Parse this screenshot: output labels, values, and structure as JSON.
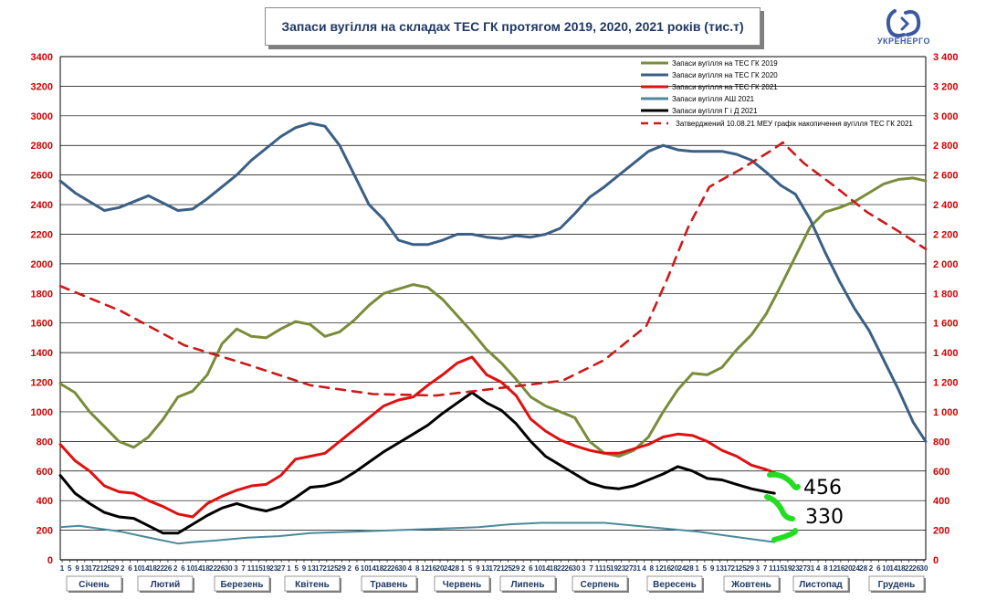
{
  "title": "Запаси вугілля на складах ТЕС ГК протягом 2019, 2020, 2021 років (тис.т)",
  "logo_text": "УКРЕНЕРГО",
  "chart_data": {
    "type": "line",
    "ylim": [
      0,
      3400
    ],
    "y_ticks_left": [
      "0",
      "200",
      "400",
      "600",
      "800",
      "1000",
      "1200",
      "1400",
      "1600",
      "1800",
      "2000",
      "2200",
      "2400",
      "2600",
      "2800",
      "3000",
      "3200",
      "3400"
    ],
    "y_ticks_right": [
      "0",
      "200",
      "400",
      "600",
      "800",
      "1 000",
      "1 200",
      "1 400",
      "1 600",
      "1 800",
      "2 000",
      "2 200",
      "2 400",
      "2 600",
      "2 800",
      "3 000",
      "3 200",
      "3 400"
    ],
    "grid": true,
    "legend_position": "top-right",
    "x_day_labels": [
      "1",
      "5",
      "9",
      "13",
      "17",
      "21",
      "25",
      "29",
      "2",
      "6",
      "10",
      "14",
      "18",
      "22",
      "26",
      "2",
      "6",
      "10",
      "14",
      "18",
      "22",
      "26",
      "30",
      "3",
      "7",
      "11",
      "15",
      "19",
      "23",
      "27",
      "1",
      "5",
      "9",
      "13",
      "17",
      "21",
      "25",
      "29",
      "2",
      "6",
      "10",
      "14",
      "18",
      "22",
      "26",
      "30",
      "4",
      "8",
      "12",
      "16",
      "20",
      "24",
      "28",
      "1",
      "5",
      "9",
      "13",
      "17",
      "21",
      "25",
      "29",
      "2",
      "6",
      "10",
      "14",
      "18",
      "22",
      "26",
      "30",
      "3",
      "7",
      "11",
      "15",
      "19",
      "23",
      "27",
      "31",
      "4",
      "8",
      "12",
      "16",
      "20",
      "24",
      "28",
      "1",
      "5",
      "9",
      "13",
      "17",
      "21",
      "25",
      "29",
      "3",
      "7",
      "11",
      "15",
      "19",
      "23",
      "27",
      "31",
      "4",
      "8",
      "12",
      "16",
      "20",
      "24",
      "28",
      "2",
      "6",
      "10",
      "14",
      "18",
      "22",
      "26",
      "30"
    ],
    "months": [
      "Січень",
      "Лютий",
      "Березень",
      "Квітень",
      "Травень",
      "Червень",
      "Липень",
      "Серпень",
      "Вересень",
      "Жовтень",
      "Листопад",
      "Грудень"
    ],
    "series": [
      {
        "name": "Запаси вугілля на ТЕС ГК 2019",
        "color": "#7a8c3a",
        "style": "solid",
        "points": [
          [
            1,
            1190
          ],
          [
            8,
            1130
          ],
          [
            15,
            1000
          ],
          [
            22,
            900
          ],
          [
            29,
            800
          ],
          [
            36,
            760
          ],
          [
            43,
            830
          ],
          [
            50,
            950
          ],
          [
            57,
            1100
          ],
          [
            64,
            1140
          ],
          [
            71,
            1250
          ],
          [
            78,
            1460
          ],
          [
            85,
            1560
          ],
          [
            92,
            1510
          ],
          [
            99,
            1500
          ],
          [
            106,
            1560
          ],
          [
            113,
            1610
          ],
          [
            120,
            1590
          ],
          [
            127,
            1510
          ],
          [
            134,
            1540
          ],
          [
            141,
            1620
          ],
          [
            148,
            1720
          ],
          [
            155,
            1800
          ],
          [
            162,
            1830
          ],
          [
            169,
            1860
          ],
          [
            176,
            1840
          ],
          [
            183,
            1760
          ],
          [
            190,
            1650
          ],
          [
            197,
            1540
          ],
          [
            204,
            1420
          ],
          [
            211,
            1330
          ],
          [
            218,
            1220
          ],
          [
            225,
            1100
          ],
          [
            232,
            1040
          ],
          [
            239,
            1000
          ],
          [
            246,
            960
          ],
          [
            253,
            800
          ],
          [
            260,
            720
          ],
          [
            267,
            700
          ],
          [
            274,
            740
          ],
          [
            281,
            830
          ],
          [
            288,
            1000
          ],
          [
            295,
            1150
          ],
          [
            302,
            1260
          ],
          [
            309,
            1250
          ],
          [
            316,
            1300
          ],
          [
            323,
            1420
          ],
          [
            330,
            1520
          ],
          [
            337,
            1660
          ],
          [
            344,
            1850
          ],
          [
            351,
            2050
          ],
          [
            358,
            2250
          ],
          [
            365,
            2350
          ],
          [
            372,
            2380
          ],
          [
            379,
            2420
          ],
          [
            386,
            2480
          ],
          [
            393,
            2540
          ],
          [
            400,
            2570
          ],
          [
            407,
            2580
          ],
          [
            413,
            2560
          ]
        ]
      },
      {
        "name": "Запаси вугілля на ТЕС ГК 2020",
        "color": "#3b5f86",
        "style": "solid",
        "points": [
          [
            1,
            2560
          ],
          [
            8,
            2480
          ],
          [
            15,
            2420
          ],
          [
            22,
            2360
          ],
          [
            29,
            2380
          ],
          [
            36,
            2420
          ],
          [
            43,
            2460
          ],
          [
            50,
            2410
          ],
          [
            57,
            2360
          ],
          [
            64,
            2370
          ],
          [
            71,
            2440
          ],
          [
            78,
            2520
          ],
          [
            85,
            2600
          ],
          [
            92,
            2700
          ],
          [
            99,
            2780
          ],
          [
            106,
            2860
          ],
          [
            113,
            2920
          ],
          [
            120,
            2950
          ],
          [
            127,
            2930
          ],
          [
            134,
            2800
          ],
          [
            141,
            2600
          ],
          [
            148,
            2400
          ],
          [
            155,
            2300
          ],
          [
            162,
            2160
          ],
          [
            169,
            2130
          ],
          [
            176,
            2130
          ],
          [
            183,
            2160
          ],
          [
            190,
            2200
          ],
          [
            197,
            2200
          ],
          [
            204,
            2180
          ],
          [
            211,
            2170
          ],
          [
            218,
            2190
          ],
          [
            225,
            2180
          ],
          [
            232,
            2200
          ],
          [
            239,
            2240
          ],
          [
            246,
            2340
          ],
          [
            253,
            2450
          ],
          [
            260,
            2520
          ],
          [
            267,
            2600
          ],
          [
            274,
            2680
          ],
          [
            281,
            2760
          ],
          [
            288,
            2800
          ],
          [
            295,
            2770
          ],
          [
            302,
            2760
          ],
          [
            309,
            2760
          ],
          [
            316,
            2760
          ],
          [
            323,
            2740
          ],
          [
            330,
            2700
          ],
          [
            337,
            2620
          ],
          [
            344,
            2530
          ],
          [
            351,
            2470
          ],
          [
            358,
            2300
          ],
          [
            365,
            2080
          ],
          [
            372,
            1880
          ],
          [
            379,
            1700
          ],
          [
            386,
            1550
          ],
          [
            393,
            1350
          ],
          [
            400,
            1150
          ],
          [
            407,
            930
          ],
          [
            413,
            800
          ]
        ]
      },
      {
        "name": "Запаси вугілля на ТЕС ГК 2021",
        "color": "#e01010",
        "style": "solid",
        "points": [
          [
            1,
            780
          ],
          [
            8,
            670
          ],
          [
            15,
            600
          ],
          [
            22,
            500
          ],
          [
            29,
            460
          ],
          [
            36,
            450
          ],
          [
            43,
            400
          ],
          [
            50,
            360
          ],
          [
            57,
            310
          ],
          [
            64,
            290
          ],
          [
            71,
            380
          ],
          [
            78,
            430
          ],
          [
            85,
            470
          ],
          [
            92,
            500
          ],
          [
            99,
            510
          ],
          [
            106,
            570
          ],
          [
            113,
            680
          ],
          [
            120,
            700
          ],
          [
            127,
            720
          ],
          [
            134,
            800
          ],
          [
            141,
            880
          ],
          [
            148,
            960
          ],
          [
            155,
            1040
          ],
          [
            162,
            1080
          ],
          [
            169,
            1100
          ],
          [
            176,
            1180
          ],
          [
            183,
            1250
          ],
          [
            190,
            1330
          ],
          [
            197,
            1370
          ],
          [
            204,
            1250
          ],
          [
            211,
            1200
          ],
          [
            218,
            1110
          ],
          [
            225,
            950
          ],
          [
            232,
            870
          ],
          [
            239,
            810
          ],
          [
            246,
            770
          ],
          [
            253,
            740
          ],
          [
            260,
            720
          ],
          [
            267,
            720
          ],
          [
            274,
            750
          ],
          [
            281,
            780
          ],
          [
            288,
            830
          ],
          [
            295,
            850
          ],
          [
            302,
            840
          ],
          [
            309,
            800
          ],
          [
            316,
            740
          ],
          [
            323,
            700
          ],
          [
            330,
            640
          ],
          [
            337,
            610
          ],
          [
            341,
            590
          ]
        ]
      },
      {
        "name": "Запаси вугілля АШ 2021",
        "color": "#4a8a9c",
        "style": "solid",
        "points": [
          [
            1,
            220
          ],
          [
            10,
            230
          ],
          [
            20,
            210
          ],
          [
            30,
            190
          ],
          [
            40,
            160
          ],
          [
            50,
            130
          ],
          [
            57,
            110
          ],
          [
            64,
            120
          ],
          [
            75,
            130
          ],
          [
            90,
            150
          ],
          [
            105,
            160
          ],
          [
            120,
            180
          ],
          [
            140,
            190
          ],
          [
            160,
            200
          ],
          [
            180,
            210
          ],
          [
            200,
            220
          ],
          [
            215,
            240
          ],
          [
            230,
            250
          ],
          [
            245,
            250
          ],
          [
            260,
            250
          ],
          [
            275,
            230
          ],
          [
            290,
            210
          ],
          [
            305,
            190
          ],
          [
            320,
            160
          ],
          [
            330,
            140
          ],
          [
            341,
            120
          ]
        ]
      },
      {
        "name": "Запаси вугілля Г і Д 2021",
        "color": "#000000",
        "style": "solid",
        "points": [
          [
            1,
            570
          ],
          [
            8,
            450
          ],
          [
            15,
            380
          ],
          [
            22,
            320
          ],
          [
            29,
            290
          ],
          [
            36,
            280
          ],
          [
            43,
            230
          ],
          [
            50,
            180
          ],
          [
            57,
            180
          ],
          [
            64,
            240
          ],
          [
            71,
            300
          ],
          [
            78,
            350
          ],
          [
            85,
            380
          ],
          [
            92,
            350
          ],
          [
            99,
            330
          ],
          [
            106,
            360
          ],
          [
            113,
            420
          ],
          [
            120,
            490
          ],
          [
            127,
            500
          ],
          [
            134,
            530
          ],
          [
            141,
            590
          ],
          [
            148,
            660
          ],
          [
            155,
            730
          ],
          [
            162,
            790
          ],
          [
            169,
            850
          ],
          [
            176,
            910
          ],
          [
            183,
            990
          ],
          [
            190,
            1060
          ],
          [
            197,
            1130
          ],
          [
            204,
            1060
          ],
          [
            211,
            1010
          ],
          [
            218,
            920
          ],
          [
            225,
            800
          ],
          [
            232,
            700
          ],
          [
            239,
            640
          ],
          [
            246,
            580
          ],
          [
            253,
            520
          ],
          [
            260,
            490
          ],
          [
            267,
            480
          ],
          [
            274,
            500
          ],
          [
            281,
            540
          ],
          [
            288,
            580
          ],
          [
            295,
            630
          ],
          [
            302,
            600
          ],
          [
            309,
            550
          ],
          [
            316,
            540
          ],
          [
            323,
            510
          ],
          [
            330,
            480
          ],
          [
            337,
            460
          ],
          [
            341,
            450
          ]
        ]
      },
      {
        "name": "Затверджений 10.08.21 МЕУ графік накопичення вугілля ТЕС ГК 2021",
        "color": "#cc1a1a",
        "style": "dashed",
        "points": [
          [
            1,
            1850
          ],
          [
            30,
            1680
          ],
          [
            60,
            1450
          ],
          [
            90,
            1320
          ],
          [
            120,
            1180
          ],
          [
            150,
            1120
          ],
          [
            180,
            1110
          ],
          [
            210,
            1160
          ],
          [
            240,
            1210
          ],
          [
            260,
            1350
          ],
          [
            280,
            1580
          ],
          [
            290,
            1900
          ],
          [
            300,
            2250
          ],
          [
            310,
            2520
          ],
          [
            325,
            2640
          ],
          [
            340,
            2770
          ],
          [
            345,
            2820
          ],
          [
            355,
            2680
          ],
          [
            370,
            2520
          ],
          [
            385,
            2350
          ],
          [
            400,
            2220
          ],
          [
            413,
            2100
          ]
        ]
      }
    ],
    "annotations": [
      {
        "text": "456",
        "color": "#000000"
      },
      {
        "text": "330",
        "color": "#000000"
      }
    ]
  }
}
